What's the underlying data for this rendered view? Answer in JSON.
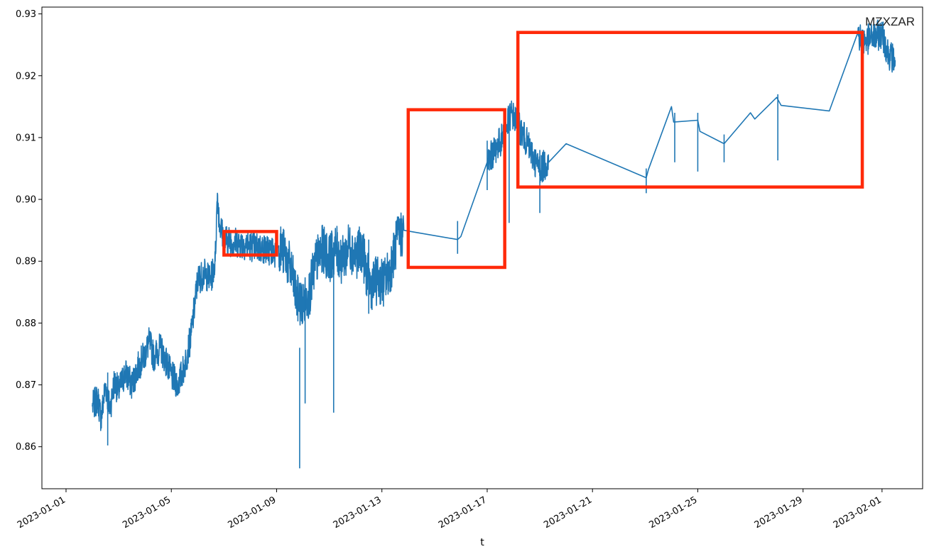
{
  "chart_data": {
    "type": "line",
    "title": "",
    "xlabel": "t",
    "ylabel": "",
    "annotation": "MZXZAR",
    "x_tick_labels": [
      "2023-01-01",
      "2023-01-05",
      "2023-01-09",
      "2023-01-13",
      "2023-01-17",
      "2023-01-21",
      "2023-01-25",
      "2023-01-29",
      "2023-02-01"
    ],
    "y_tick_labels": [
      "0.86",
      "0.87",
      "0.88",
      "0.89",
      "0.90",
      "0.91",
      "0.92",
      "0.93"
    ],
    "y_ticks": [
      0.86,
      0.87,
      0.88,
      0.89,
      0.9,
      0.91,
      0.92,
      0.93
    ],
    "xlim": [
      "2023-01-00T02:00",
      "2023-02-02T13:00"
    ],
    "ylim": [
      0.8532,
      0.9311
    ],
    "grid": false,
    "line_color": "#1f77b4",
    "highlight_color": "#ff2a0a",
    "series": [
      {
        "values": [
          [
            "2023-01-02T00:00",
            0.8665
          ],
          [
            "2023-01-02T05:00",
            0.8678
          ],
          [
            "2023-01-02T08:00",
            0.8645
          ],
          [
            "2023-01-02T12:00",
            0.87
          ],
          [
            "2023-01-02T16:00",
            0.866
          ],
          [
            "2023-01-02T20:00",
            0.8705
          ],
          [
            "2023-01-03T00:00",
            0.869
          ],
          [
            "2023-01-03T06:00",
            0.872
          ],
          [
            "2023-01-03T12:00",
            0.87
          ],
          [
            "2023-01-03T18:00",
            0.873
          ],
          [
            "2023-01-04T00:00",
            0.875
          ],
          [
            "2023-01-04T04:00",
            0.877
          ],
          [
            "2023-01-04T08:00",
            0.8745
          ],
          [
            "2023-01-04T14:00",
            0.876
          ],
          [
            "2023-01-04T20:00",
            0.8735
          ],
          [
            "2023-01-05T00:00",
            0.8715
          ],
          [
            "2023-01-05T06:00",
            0.87
          ],
          [
            "2023-01-05T12:00",
            0.873
          ],
          [
            "2023-01-05T18:00",
            0.878
          ],
          [
            "2023-01-06T00:00",
            0.887
          ],
          [
            "2023-01-06T06:00",
            0.888
          ],
          [
            "2023-01-06T12:00",
            0.887
          ],
          [
            "2023-01-06T16:00",
            0.89
          ],
          [
            "2023-01-06T18:00",
            0.901
          ],
          [
            "2023-01-06T20:00",
            0.896
          ],
          [
            "2023-01-07T00:00",
            0.8935
          ],
          [
            "2023-01-08T23:00",
            0.8915
          ],
          [
            "2023-01-09T02:00",
            0.8925
          ],
          [
            "2023-01-09T08:00",
            0.891
          ],
          [
            "2023-01-09T14:00",
            0.888
          ],
          [
            "2023-01-09T18:00",
            0.884
          ],
          [
            "2023-01-10T00:00",
            0.883
          ],
          [
            "2023-01-10T06:00",
            0.885
          ],
          [
            "2023-01-10T12:00",
            0.89
          ],
          [
            "2023-01-10T18:00",
            0.892
          ],
          [
            "2023-01-11T00:00",
            0.8905
          ],
          [
            "2023-01-11T06:00",
            0.892
          ],
          [
            "2023-01-11T12:00",
            0.89
          ],
          [
            "2023-01-11T18:00",
            0.8925
          ],
          [
            "2023-01-12T00:00",
            0.891
          ],
          [
            "2023-01-12T06:00",
            0.892
          ],
          [
            "2023-01-12T10:00",
            0.888
          ],
          [
            "2023-01-12T14:00",
            0.886
          ],
          [
            "2023-01-12T20:00",
            0.887
          ],
          [
            "2023-01-13T02:00",
            0.8865
          ],
          [
            "2023-01-13T08:00",
            0.889
          ],
          [
            "2023-01-13T14:00",
            0.8935
          ],
          [
            "2023-01-13T20:00",
            0.895
          ],
          [
            "2023-01-15T21:00",
            0.8935
          ],
          [
            "2023-01-16T00:00",
            0.894
          ],
          [
            "2023-01-17T00:00",
            0.906
          ],
          [
            "2023-01-17T14:00",
            0.91
          ],
          [
            "2023-01-17T22:00",
            0.914
          ],
          [
            "2023-01-18T10:00",
            0.91
          ],
          [
            "2023-01-18T20:00",
            0.906
          ],
          [
            "2023-01-19T00:00",
            0.905
          ],
          [
            "2023-01-19T08:00",
            0.906
          ],
          [
            "2023-01-20T00:00",
            0.909
          ],
          [
            "2023-01-23T01:00",
            0.9035
          ],
          [
            "2023-01-23T03:00",
            0.9048
          ],
          [
            "2023-01-24T00:00",
            0.915
          ],
          [
            "2023-01-24T02:00",
            0.9125
          ],
          [
            "2023-01-25T00:00",
            0.9128
          ],
          [
            "2023-01-25T02:00",
            0.911
          ],
          [
            "2023-01-26T00:00",
            0.909
          ],
          [
            "2023-01-27T00:00",
            0.914
          ],
          [
            "2023-01-27T04:00",
            0.913
          ],
          [
            "2023-01-28T00:00",
            0.9165
          ],
          [
            "2023-01-28T04:00",
            0.9152
          ],
          [
            "2023-01-30T00:00",
            0.9143
          ],
          [
            "2023-01-31T02:00",
            0.927
          ],
          [
            "2023-01-31T06:00",
            0.9255
          ],
          [
            "2023-02-01T00:00",
            0.9268
          ],
          [
            "2023-02-01T06:00",
            0.9235
          ],
          [
            "2023-02-01T12:00",
            0.9225
          ]
        ]
      }
    ],
    "spikes": [
      [
        "2023-01-09T21:00",
        0.8565,
        0.876
      ],
      [
        "2023-01-10T02:00",
        0.867,
        0.884
      ],
      [
        "2023-01-11T04:00",
        0.8655,
        0.89
      ],
      [
        "2023-01-12T12:00",
        0.8815,
        0.8935
      ],
      [
        "2023-01-02T14:00",
        0.8602,
        0.872
      ],
      [
        "2023-01-17T20:00",
        0.8962,
        0.913
      ],
      [
        "2023-01-19T00:00",
        0.8978,
        0.908
      ],
      [
        "2023-01-25T00:00",
        0.9045,
        0.914
      ],
      [
        "2023-01-24T03:00",
        0.906,
        0.914
      ],
      [
        "2023-01-28T01:00",
        0.9063,
        0.917
      ],
      [
        "2023-01-23T01:00",
        0.901,
        0.905
      ],
      [
        "2023-01-26T00:00",
        0.906,
        0.9105
      ],
      [
        "2023-01-15T21:00",
        0.8912,
        0.8965
      ],
      [
        "2023-01-17T00:00",
        0.9015,
        0.9095
      ]
    ],
    "noisy_segments": [
      [
        "2023-01-02T00:00",
        "2023-01-08T23:00",
        0.005
      ],
      [
        "2023-01-09T02:00",
        "2023-01-13T20:00",
        0.008
      ],
      [
        "2023-01-16T20:00",
        "2023-01-19T10:00",
        0.005
      ],
      [
        "2023-01-19T20:00",
        "2023-01-20T05:00",
        0.005
      ],
      [
        "2023-01-31T02:00",
        "2023-02-01T12:00",
        0.005
      ]
    ],
    "highlight_boxes": [
      {
        "x": [
          "2023-01-07T00:00",
          "2023-01-09T00:00"
        ],
        "y": [
          0.891,
          0.8948
        ]
      },
      {
        "x": [
          "2023-01-14T00:00",
          "2023-01-17T16:00"
        ],
        "y": [
          0.889,
          0.9145
        ]
      },
      {
        "x": [
          "2023-01-18T04:00",
          "2023-01-31T06:00"
        ],
        "y": [
          0.902,
          0.927
        ]
      }
    ]
  }
}
